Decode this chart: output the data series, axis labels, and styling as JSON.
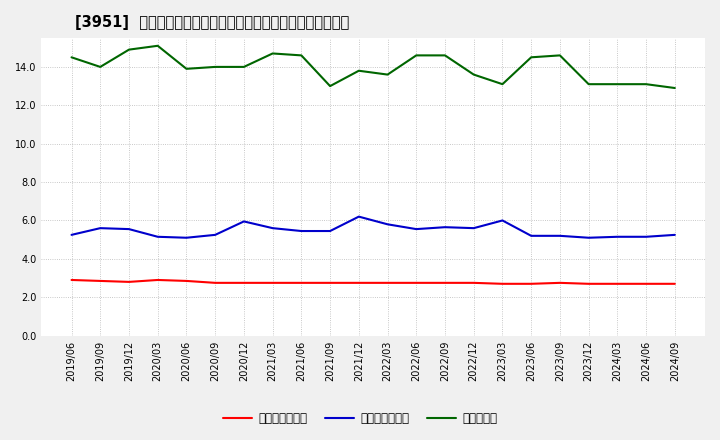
{
  "title": "[3951]  売上債権回転率、買入債務回転率、在庫回転率の推移",
  "x_labels": [
    "2019/06",
    "2019/09",
    "2019/12",
    "2020/03",
    "2020/06",
    "2020/09",
    "2020/12",
    "2021/03",
    "2021/06",
    "2021/09",
    "2021/12",
    "2022/03",
    "2022/06",
    "2022/09",
    "2022/12",
    "2023/03",
    "2023/06",
    "2023/09",
    "2023/12",
    "2024/03",
    "2024/06",
    "2024/09"
  ],
  "売上債権回転率": [
    2.9,
    2.85,
    2.8,
    2.9,
    2.85,
    2.75,
    2.75,
    2.75,
    2.75,
    2.75,
    2.75,
    2.75,
    2.75,
    2.75,
    2.75,
    2.7,
    2.7,
    2.75,
    2.7,
    2.7,
    2.7,
    2.7
  ],
  "買入債務回転率": [
    5.25,
    5.6,
    5.55,
    5.15,
    5.1,
    5.25,
    5.95,
    5.6,
    5.45,
    5.45,
    6.2,
    5.8,
    5.55,
    5.65,
    5.6,
    6.0,
    5.2,
    5.2,
    5.1,
    5.15,
    5.15,
    5.25
  ],
  "在庫回転率": [
    14.5,
    14.0,
    14.9,
    15.1,
    13.9,
    14.0,
    14.0,
    14.7,
    14.6,
    13.0,
    13.8,
    13.6,
    14.6,
    14.6,
    13.6,
    13.1,
    14.5,
    14.6,
    13.1,
    13.1,
    13.1,
    12.9
  ],
  "colors": {
    "売上債権回転率": "#ff0000",
    "買入債務回転率": "#0000cc",
    "在庫回転率": "#006600"
  },
  "legend_labels": [
    "売上債権回転率",
    "買入債務回転率",
    "在庫回転率"
  ],
  "ylim": [
    0,
    15.5
  ],
  "yticks": [
    0.0,
    2.0,
    4.0,
    6.0,
    8.0,
    10.0,
    12.0,
    14.0
  ],
  "background_color": "#f0f0f0",
  "plot_bg_color": "#ffffff",
  "grid_color": "#999999",
  "title_fontsize": 10.5,
  "legend_fontsize": 8.5,
  "tick_fontsize": 7.0
}
